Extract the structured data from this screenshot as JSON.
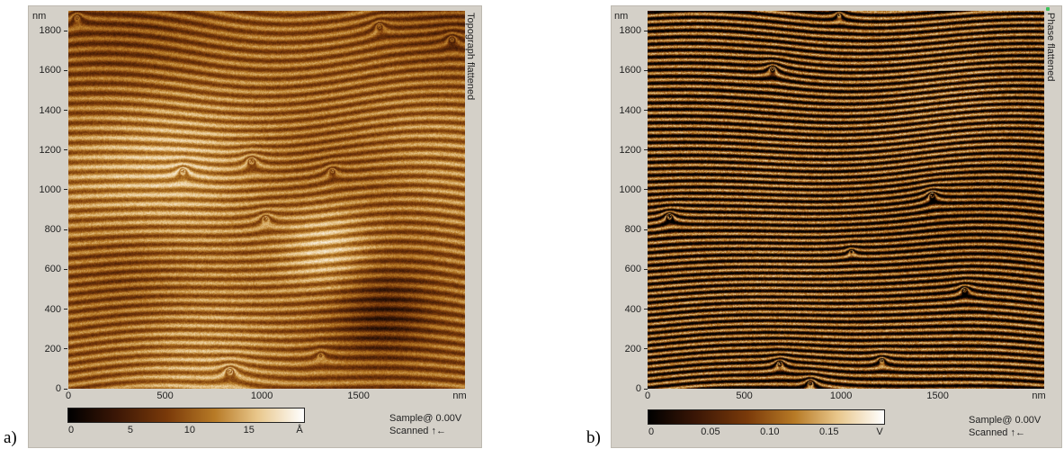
{
  "panels": [
    {
      "letter": "a)",
      "y_unit": "nm",
      "y_ticks": [
        "1800",
        "1600",
        "1400",
        "1200",
        "1000",
        "800",
        "600",
        "400",
        "200",
        "0"
      ],
      "x_ticks": [
        "0",
        "500",
        "1000",
        "1500"
      ],
      "x_unit": "nm",
      "side_label": "Topograph flattened",
      "colorbar": {
        "ticks": [
          "0",
          "5",
          "10",
          "15"
        ],
        "unit": "Å"
      },
      "status": {
        "sample": "Sample@ 0.00V",
        "scanned": "Scanned ↑←"
      }
    },
    {
      "letter": "b)",
      "y_unit": "nm",
      "y_ticks": [
        "1800",
        "1600",
        "1400",
        "1200",
        "1000",
        "800",
        "600",
        "400",
        "200",
        "0"
      ],
      "x_ticks": [
        "0",
        "500",
        "1000",
        "1500"
      ],
      "x_unit": "nm",
      "side_label": "Phase flattened",
      "colorbar": {
        "ticks": [
          "0",
          "0.05",
          "0.10",
          "0.15"
        ],
        "unit": "V"
      },
      "status": {
        "sample": "Sample@ 0.00V",
        "scanned": "Scanned ↑←"
      }
    }
  ],
  "colors": {
    "frame": "#d4d0c8",
    "dark": "#2a0e02",
    "mid": "#8a4c12",
    "light": "#f3dfb0"
  }
}
